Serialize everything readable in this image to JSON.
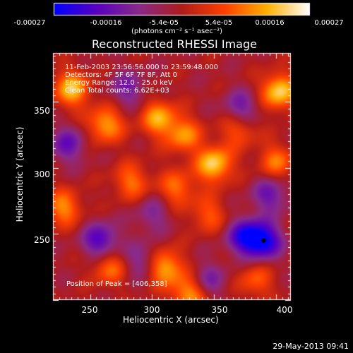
{
  "colorbar": {
    "ticks": [
      "-0.00027",
      "-0.00016",
      "-5.4e-05",
      "5.4e-05",
      "0.00016",
      "0.00027"
    ],
    "tick_values": [
      -0.00027,
      -0.00016,
      -5.4e-05,
      5.4e-05,
      0.00016,
      0.00027
    ],
    "range": [
      -0.00027,
      0.00027
    ],
    "unit": "(photons cm⁻² s⁻¹ asec⁻²)",
    "colors": [
      "#0000ff",
      "#5a00c0",
      "#8a2a8a",
      "#b01c1c",
      "#ff4000",
      "#ffb000",
      "#ffffff"
    ]
  },
  "chart_data": {
    "type": "heatmap",
    "title": "Reconstructed RHESSI Image",
    "xlabel": "Heliocentric X (arcsec)",
    "ylabel": "Heliocentric Y (arcsec)",
    "xlim": [
      220,
      412
    ],
    "ylim": [
      200,
      387
    ],
    "xticks": [
      250,
      300,
      350,
      400
    ],
    "yticks": [
      250,
      300,
      350
    ],
    "annotations": {
      "time": "11-Feb-2003 23:56:56.000 to 23:59:48.000",
      "detectors": "Detectors: 4F 5F 6F 7F 8F, Att 0",
      "energy": "Energy Range: 12.0 - 25.0 keV",
      "clean": "Clean     Total counts: 6.62E+03",
      "peak": "Position of Peak = [406,358]"
    },
    "peak_position": [
      406,
      358
    ],
    "blobs": [
      {
        "x": 235,
        "y": 360,
        "v": 0.9
      },
      {
        "x": 228,
        "y": 270,
        "v": 0.7
      },
      {
        "x": 262,
        "y": 333,
        "v": 0.8
      },
      {
        "x": 283,
        "y": 290,
        "v": 0.6
      },
      {
        "x": 305,
        "y": 338,
        "v": 0.8
      },
      {
        "x": 325,
        "y": 325,
        "v": 0.7
      },
      {
        "x": 350,
        "y": 303,
        "v": 1.0
      },
      {
        "x": 320,
        "y": 285,
        "v": 0.6
      },
      {
        "x": 345,
        "y": 265,
        "v": 0.5
      },
      {
        "x": 402,
        "y": 358,
        "v": 1.0
      },
      {
        "x": 400,
        "y": 305,
        "v": 0.6
      },
      {
        "x": 310,
        "y": 225,
        "v": 0.9
      },
      {
        "x": 330,
        "y": 205,
        "v": 0.8
      },
      {
        "x": 370,
        "y": 330,
        "v": 0.55
      },
      {
        "x": 265,
        "y": 225,
        "v": 0.6
      },
      {
        "x": 383,
        "y": 215,
        "v": 0.5
      },
      {
        "x": 375,
        "y": 248,
        "v": -0.9
      },
      {
        "x": 390,
        "y": 245,
        "v": -1.0
      },
      {
        "x": 258,
        "y": 245,
        "v": -0.8
      },
      {
        "x": 232,
        "y": 318,
        "v": -0.6
      },
      {
        "x": 372,
        "y": 345,
        "v": -0.6
      },
      {
        "x": 292,
        "y": 230,
        "v": -0.5
      },
      {
        "x": 345,
        "y": 215,
        "v": -0.5
      },
      {
        "x": 280,
        "y": 360,
        "v": -0.5
      },
      {
        "x": 395,
        "y": 280,
        "v": -0.6
      },
      {
        "x": 300,
        "y": 265,
        "v": -0.4
      }
    ]
  },
  "footer": {
    "date": "29-May-2013 09:41"
  }
}
